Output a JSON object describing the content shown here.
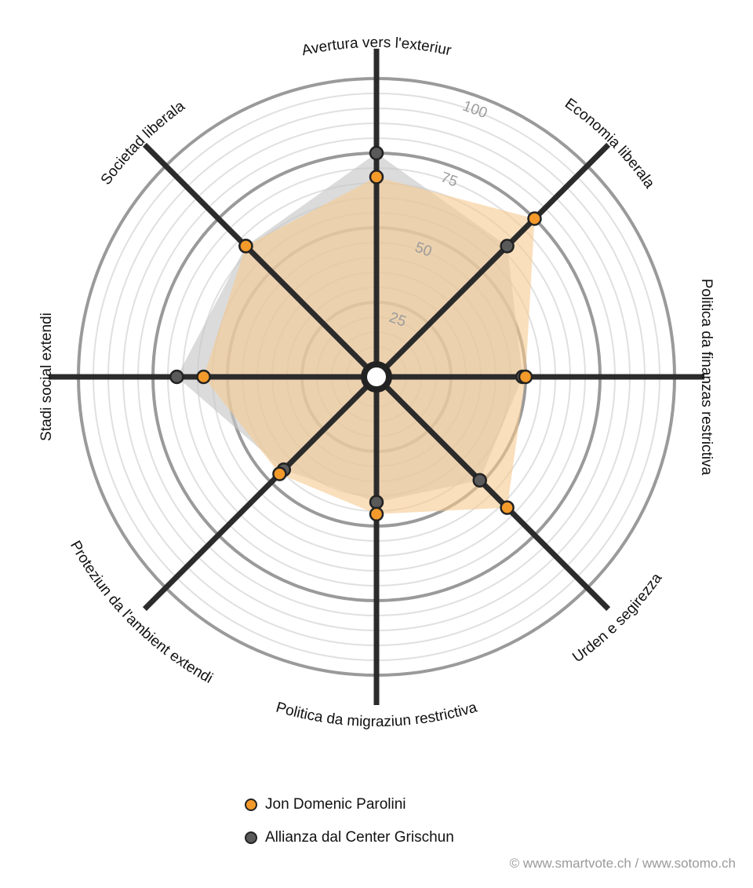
{
  "chart_data": {
    "type": "radar",
    "axes": [
      "Avertura vers l'exteriur",
      "Economia liberala",
      "Politica da finanzas restrictiva",
      "Urden e segirezza",
      "Politica da migraziun restrictiva",
      "Proteziun da l'ambient extendi",
      "Stadi social extendi",
      "Societad liberala"
    ],
    "tick_labels": [
      "25",
      "50",
      "75",
      "100"
    ],
    "range": [
      0,
      100
    ],
    "series": [
      {
        "name": "Jon Domenic Parolini",
        "values": [
          67,
          75,
          50,
          62,
          46,
          46,
          58,
          62
        ],
        "color": "#f39a2b",
        "fill": "#f6c98f"
      },
      {
        "name": "Allianza dal Center Grischun",
        "values": [
          75,
          62,
          49,
          49,
          42,
          44,
          67,
          62
        ],
        "color": "#5a5a5a",
        "fill": "#c8c8c8"
      }
    ],
    "grid": true,
    "legend_position": "bottom"
  },
  "legend": {
    "items": [
      {
        "label": "Jon Domenic Parolini",
        "color": "#f39a2b"
      },
      {
        "label": "Allianza dal Center Grischun",
        "color": "#5a5a5a"
      }
    ]
  },
  "credit": "© www.smartvote.ch / www.sotomo.ch"
}
